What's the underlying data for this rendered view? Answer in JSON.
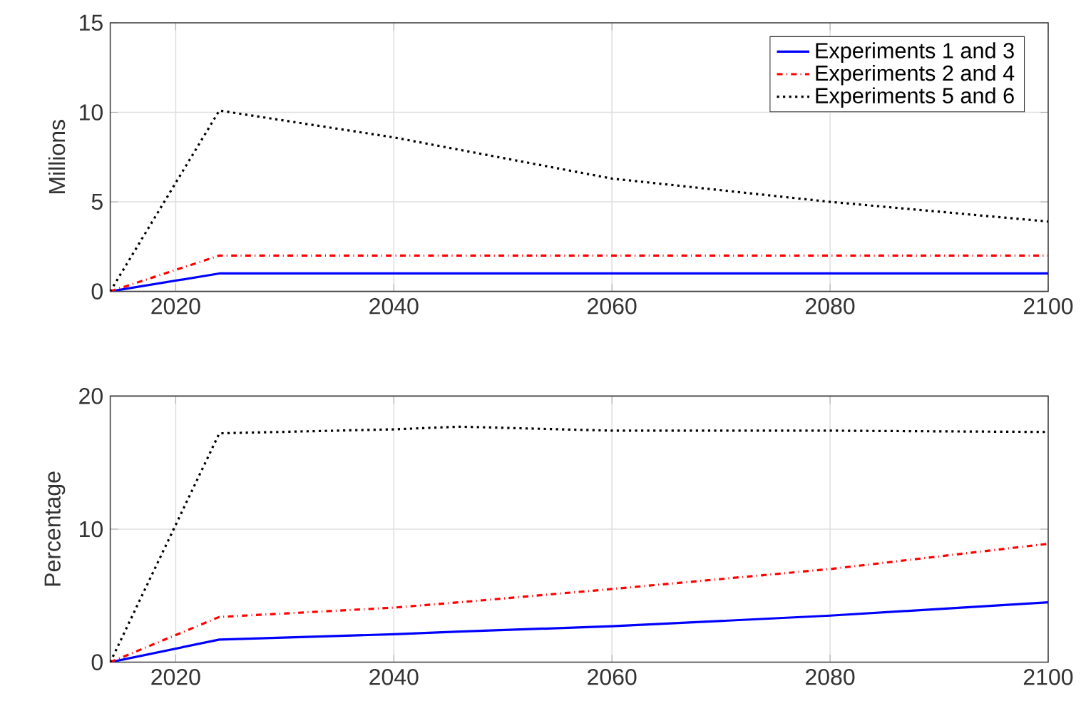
{
  "chart_data": [
    {
      "type": "line",
      "ylabel": "Millions",
      "x": [
        2014,
        2024,
        2040,
        2060,
        2080,
        2100
      ],
      "xlim": [
        2014,
        2100
      ],
      "xticks": [
        2020,
        2040,
        2060,
        2080,
        2100
      ],
      "ylim": [
        0,
        15
      ],
      "yticks": [
        0,
        5,
        10,
        15
      ],
      "grid": true,
      "legend": "top right",
      "marker": "none",
      "series": [
        {
          "name": "Experiments 1 and 3",
          "color": "#0000ff",
          "line_style": "solid",
          "values": [
            0,
            1,
            1,
            1,
            1,
            1
          ]
        },
        {
          "name": "Experiments 2 and 4",
          "color": "#ff0000",
          "line_style": "dashdot",
          "values": [
            0,
            2,
            2,
            2,
            2,
            2
          ]
        },
        {
          "name": "Experiments 5 and 6",
          "color": "#000000",
          "line_style": "dotted",
          "values": [
            0,
            10.1,
            8.6,
            6.3,
            5.0,
            3.9
          ]
        }
      ]
    },
    {
      "type": "line",
      "ylabel": "Percentage",
      "x": [
        2014,
        2024,
        2040,
        2046,
        2060,
        2080,
        2100
      ],
      "xlim": [
        2014,
        2100
      ],
      "xticks": [
        2020,
        2040,
        2060,
        2080,
        2100
      ],
      "ylim": [
        0,
        20
      ],
      "yticks": [
        0,
        10,
        20
      ],
      "grid": true,
      "marker": "none",
      "series": [
        {
          "color": "#0000ff",
          "line_style": "solid",
          "values": [
            0,
            1.7,
            2.1,
            2.3,
            2.7,
            3.5,
            4.5
          ]
        },
        {
          "color": "#ff0000",
          "line_style": "dashdot",
          "values": [
            0,
            3.4,
            4.1,
            4.5,
            5.5,
            7.0,
            8.9
          ]
        },
        {
          "color": "#000000",
          "line_style": "dotted",
          "values": [
            0,
            17.2,
            17.5,
            17.7,
            17.4,
            17.4,
            17.3
          ]
        }
      ]
    }
  ]
}
